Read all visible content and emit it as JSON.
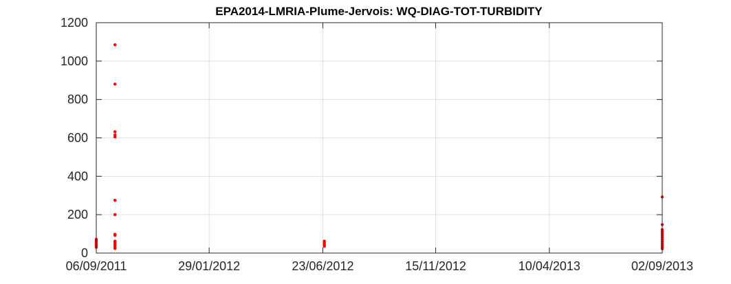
{
  "chart_data": {
    "type": "scatter",
    "title": "EPA2014-LMRIA-Plume-Jervois: WQ-DIAG-TOT-TURBIDITY",
    "xlabel": "",
    "ylabel": "",
    "xlim": [
      "2011-09-06",
      "2013-09-02"
    ],
    "ylim": [
      0,
      1200
    ],
    "x_ticks": [
      "06/09/2011",
      "29/01/2012",
      "23/06/2012",
      "15/11/2012",
      "10/04/2013",
      "02/09/2013"
    ],
    "y_ticks": [
      "0",
      "200",
      "400",
      "600",
      "800",
      "1000",
      "1200"
    ],
    "grid": true,
    "legend": "none",
    "marker_color": "#ff0000",
    "series": [
      {
        "points": [
          {
            "x": "2011-09-06",
            "y": 30
          },
          {
            "x": "2011-09-06",
            "y": 36
          },
          {
            "x": "2011-09-06",
            "y": 42
          },
          {
            "x": "2011-09-06",
            "y": 48
          },
          {
            "x": "2011-09-06",
            "y": 54
          },
          {
            "x": "2011-09-06",
            "y": 60
          },
          {
            "x": "2011-09-06",
            "y": 66
          },
          {
            "x": "2011-09-06",
            "y": 72
          },
          {
            "x": "2011-09-30",
            "y": 1085
          },
          {
            "x": "2011-09-30",
            "y": 880
          },
          {
            "x": "2011-09-30",
            "y": 632
          },
          {
            "x": "2011-09-30",
            "y": 615
          },
          {
            "x": "2011-09-30",
            "y": 605
          },
          {
            "x": "2011-09-30",
            "y": 275
          },
          {
            "x": "2011-09-30",
            "y": 200
          },
          {
            "x": "2011-09-30",
            "y": 98
          },
          {
            "x": "2011-09-30",
            "y": 92
          },
          {
            "x": "2011-09-30",
            "y": 62
          },
          {
            "x": "2011-09-30",
            "y": 55
          },
          {
            "x": "2011-09-30",
            "y": 48
          },
          {
            "x": "2011-09-30",
            "y": 40
          },
          {
            "x": "2011-09-30",
            "y": 32
          },
          {
            "x": "2011-09-30",
            "y": 24
          },
          {
            "x": "2012-06-25",
            "y": 35
          },
          {
            "x": "2012-06-25",
            "y": 42
          },
          {
            "x": "2012-06-25",
            "y": 48
          },
          {
            "x": "2012-06-25",
            "y": 55
          },
          {
            "x": "2012-06-25",
            "y": 62
          },
          {
            "x": "2013-09-02",
            "y": 292
          },
          {
            "x": "2013-09-02",
            "y": 148
          },
          {
            "x": "2013-09-02",
            "y": 122
          },
          {
            "x": "2013-09-02",
            "y": 112
          },
          {
            "x": "2013-09-02",
            "y": 102
          },
          {
            "x": "2013-09-02",
            "y": 92
          },
          {
            "x": "2013-09-02",
            "y": 82
          },
          {
            "x": "2013-09-02",
            "y": 72
          },
          {
            "x": "2013-09-02",
            "y": 62
          },
          {
            "x": "2013-09-02",
            "y": 52
          },
          {
            "x": "2013-09-02",
            "y": 42
          },
          {
            "x": "2013-09-02",
            "y": 32
          },
          {
            "x": "2013-09-02",
            "y": 22
          }
        ]
      }
    ]
  }
}
